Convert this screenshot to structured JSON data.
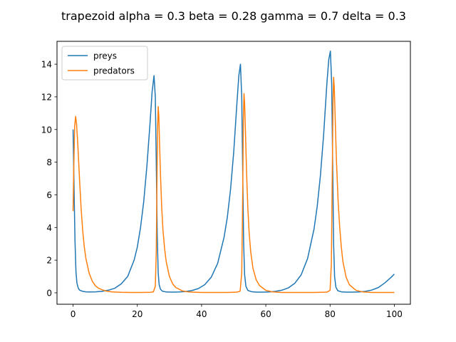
{
  "chart_data": {
    "type": "line",
    "title": "trapezoid alpha = 0.3 beta = 0.28 gamma = 0.7 delta = 0.3",
    "xlabel": "",
    "ylabel": "",
    "xlim": [
      -5,
      105
    ],
    "ylim": [
      -0.7,
      15.4
    ],
    "xticks": [
      0,
      20,
      40,
      60,
      80,
      100
    ],
    "yticks": [
      0,
      2,
      4,
      6,
      8,
      10,
      12,
      14
    ],
    "grid": false,
    "legend_position": "upper-left",
    "series": [
      {
        "name": "preys",
        "color": "#1f77b4",
        "x": [
          0,
          0.3,
          0.6,
          0.9,
          1.2,
          1.6,
          2,
          3,
          4,
          5,
          7,
          9,
          11,
          13,
          15,
          17,
          19,
          20,
          21,
          22,
          23,
          24,
          24.6,
          25.2,
          25.6,
          25.9,
          26.2,
          26.5,
          26.8,
          27.2,
          27.8,
          29,
          31,
          33,
          35,
          37,
          39,
          41,
          43,
          45,
          47,
          48,
          49,
          50,
          51,
          51.6,
          52.1,
          52.5,
          52.8,
          53.1,
          53.4,
          53.8,
          54.4,
          55.5,
          57,
          59,
          61,
          63,
          65,
          67,
          69,
          71,
          73,
          75,
          76,
          77,
          78,
          79,
          79.6,
          80.1,
          80.5,
          80.8,
          81.1,
          81.4,
          81.8,
          82.4,
          83.5,
          85,
          87,
          89,
          91,
          93,
          95,
          97,
          99,
          100
        ],
        "y": [
          10.0,
          6.5,
          3.2,
          1.3,
          0.6,
          0.3,
          0.17,
          0.09,
          0.06,
          0.05,
          0.06,
          0.09,
          0.16,
          0.28,
          0.55,
          1.0,
          2.0,
          2.8,
          4.0,
          5.6,
          7.8,
          10.5,
          12.3,
          13.3,
          12.0,
          8.0,
          3.5,
          1.2,
          0.5,
          0.22,
          0.1,
          0.05,
          0.04,
          0.05,
          0.08,
          0.14,
          0.26,
          0.5,
          0.95,
          1.8,
          3.4,
          4.6,
          6.3,
          8.6,
          11.6,
          13.3,
          14.0,
          12.0,
          7.5,
          3.0,
          1.1,
          0.4,
          0.15,
          0.07,
          0.04,
          0.04,
          0.05,
          0.09,
          0.16,
          0.3,
          0.58,
          1.1,
          2.1,
          3.9,
          5.3,
          7.2,
          9.7,
          12.8,
          14.3,
          14.8,
          12.8,
          8.0,
          3.0,
          1.0,
          0.35,
          0.13,
          0.06,
          0.04,
          0.04,
          0.05,
          0.09,
          0.17,
          0.32,
          0.6,
          0.95,
          1.15
        ]
      },
      {
        "name": "predators",
        "color": "#ff7f0e",
        "x": [
          0,
          0.2,
          0.5,
          0.8,
          1.1,
          1.5,
          2,
          2.5,
          3,
          3.5,
          4,
          5,
          6,
          7,
          8,
          10,
          12,
          15,
          18,
          21,
          24,
          25,
          25.6,
          25.9,
          26.1,
          26.3,
          26.5,
          26.7,
          26.9,
          27.2,
          27.6,
          28,
          28.5,
          29,
          30,
          31,
          32,
          34,
          36,
          40,
          44,
          48,
          51,
          52,
          52.5,
          52.8,
          53,
          53.2,
          53.4,
          53.7,
          54,
          54.4,
          54.8,
          55.3,
          56,
          57,
          58,
          60,
          62,
          65,
          70,
          75,
          79,
          80,
          80.4,
          80.7,
          80.9,
          81.1,
          81.3,
          81.6,
          82,
          82.5,
          83,
          83.5,
          84,
          85,
          86,
          88,
          90,
          93,
          97,
          100
        ],
        "y": [
          5.0,
          7.5,
          10.2,
          10.8,
          10.3,
          9.0,
          7.0,
          5.2,
          3.8,
          2.8,
          2.1,
          1.2,
          0.7,
          0.42,
          0.27,
          0.12,
          0.06,
          0.03,
          0.02,
          0.02,
          0.03,
          0.06,
          0.4,
          2.5,
          6.5,
          10.0,
          11.4,
          10.8,
          9.3,
          7.3,
          5.2,
          3.8,
          2.7,
          1.9,
          1.0,
          0.55,
          0.32,
          0.12,
          0.05,
          0.02,
          0.02,
          0.02,
          0.04,
          0.1,
          1.2,
          6.0,
          10.5,
          12.2,
          11.6,
          9.6,
          7.4,
          5.2,
          3.7,
          2.5,
          1.5,
          0.8,
          0.45,
          0.15,
          0.06,
          0.02,
          0.02,
          0.02,
          0.04,
          0.15,
          1.8,
          7.5,
          11.5,
          13.2,
          12.6,
          10.6,
          8.0,
          5.6,
          4.0,
          2.8,
          1.9,
          0.95,
          0.5,
          0.16,
          0.06,
          0.02,
          0.02,
          0.02
        ]
      }
    ]
  }
}
